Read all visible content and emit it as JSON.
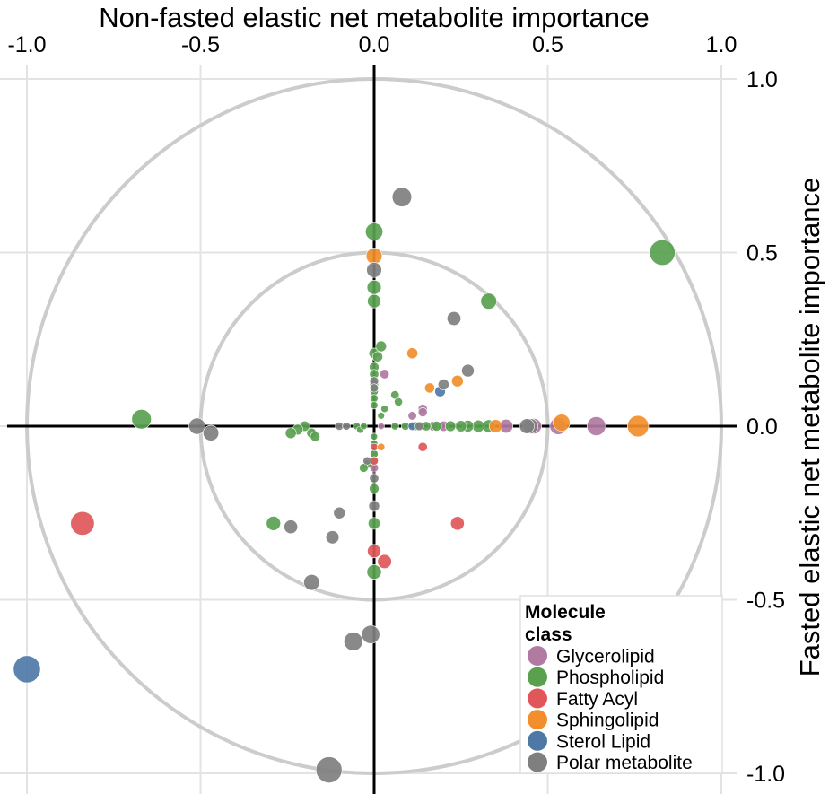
{
  "chart_data": {
    "type": "scatter",
    "title": "Non-fasted elastic net metabolite importance",
    "xlabel": "Non-fasted elastic net metabolite importance",
    "ylabel": "Fasted elastic net metabolite importance",
    "xlim": [
      -1.0,
      1.0
    ],
    "ylim": [
      -1.0,
      1.0
    ],
    "x_ticks": [
      "-1.0",
      "-0.5",
      "0.0",
      "0.5",
      "1.0"
    ],
    "y_ticks": [
      "1.0",
      "0.5",
      "0.0",
      "-0.5",
      "-1.0"
    ],
    "x_tick_values": [
      -1.0,
      -0.5,
      0.0,
      0.5,
      1.0
    ],
    "y_tick_values": [
      1.0,
      0.5,
      0.0,
      -0.5,
      -1.0
    ],
    "grid": true,
    "circles": [
      0.5,
      1.0
    ],
    "legend": {
      "title": "Molecule class",
      "title_lines": [
        "Molecule",
        "class"
      ],
      "placement": "bottom-right",
      "entries": [
        {
          "name": "Glycerolipid",
          "color": "#b07aa1"
        },
        {
          "name": "Phospholipid",
          "color": "#59a14f"
        },
        {
          "name": "Fatty Acyl",
          "color": "#e15759"
        },
        {
          "name": "Sphingolipid",
          "color": "#f28e2b"
        },
        {
          "name": "Sterol Lipid",
          "color": "#4e79a7"
        },
        {
          "name": "Polar metabolite",
          "color": "#7f7f7f"
        }
      ]
    },
    "series": [
      {
        "name": "Glycerolipid",
        "color": "#b07aa1",
        "points": [
          [
            0.64,
            0.0
          ],
          [
            0.53,
            0.0
          ],
          [
            0.46,
            0.0
          ],
          [
            0.38,
            0.0
          ],
          [
            0.2,
            0.0
          ],
          [
            0.14,
            0.05
          ],
          [
            0.14,
            0.04
          ],
          [
            0.11,
            0.03
          ],
          [
            0.03,
            0.15
          ],
          [
            0.12,
            0.0
          ],
          [
            0.17,
            0.0
          ],
          [
            0.0,
            -0.12
          ],
          [
            0.0,
            -0.08
          ],
          [
            0.02,
            0.0
          ]
        ]
      },
      {
        "name": "Phospholipid",
        "color": "#59a14f",
        "points": [
          [
            0.83,
            0.5
          ],
          [
            -0.67,
            0.02
          ],
          [
            0.0,
            0.56
          ],
          [
            0.0,
            0.4
          ],
          [
            0.0,
            0.36
          ],
          [
            0.33,
            0.36
          ],
          [
            0.0,
            0.21
          ],
          [
            0.02,
            0.23
          ],
          [
            0.01,
            0.2
          ],
          [
            0.0,
            0.17
          ],
          [
            0.0,
            0.15
          ],
          [
            0.0,
            0.12
          ],
          [
            0.0,
            0.1
          ],
          [
            0.0,
            0.08
          ],
          [
            0.0,
            0.06
          ],
          [
            0.06,
            0.09
          ],
          [
            0.07,
            0.07
          ],
          [
            0.03,
            0.05
          ],
          [
            0.02,
            0.03
          ],
          [
            0.33,
            0.0
          ],
          [
            0.3,
            0.0
          ],
          [
            0.27,
            0.0
          ],
          [
            0.25,
            0.0
          ],
          [
            0.22,
            0.0
          ],
          [
            0.18,
            0.0
          ],
          [
            0.15,
            0.0
          ],
          [
            0.12,
            0.0
          ],
          [
            0.09,
            0.0
          ],
          [
            0.06,
            0.0
          ],
          [
            -0.2,
            0.0
          ],
          [
            -0.18,
            -0.02
          ],
          [
            -0.17,
            -0.03
          ],
          [
            -0.22,
            -0.01
          ],
          [
            -0.24,
            -0.02
          ],
          [
            -0.05,
            0.0
          ],
          [
            -0.04,
            -0.01
          ],
          [
            -0.03,
            0.0
          ],
          [
            0.0,
            -0.03
          ],
          [
            0.0,
            -0.08
          ],
          [
            0.0,
            -0.1
          ],
          [
            -0.02,
            -0.11
          ],
          [
            -0.03,
            -0.12
          ],
          [
            0.0,
            -0.18
          ],
          [
            0.0,
            -0.28
          ],
          [
            0.0,
            -0.42
          ],
          [
            -0.29,
            -0.28
          ],
          [
            0.0,
            -0.1
          ],
          [
            0.0,
            -0.05
          ]
        ]
      },
      {
        "name": "Fatty Acyl",
        "color": "#e15759",
        "points": [
          [
            -0.84,
            -0.28
          ],
          [
            0.24,
            -0.28
          ],
          [
            0.0,
            -0.36
          ],
          [
            0.03,
            -0.39
          ],
          [
            0.14,
            -0.06
          ],
          [
            0.0,
            -0.06
          ],
          [
            0.0,
            -0.1
          ]
        ]
      },
      {
        "name": "Sphingolipid",
        "color": "#f28e2b",
        "points": [
          [
            0.76,
            0.0
          ],
          [
            0.54,
            0.01
          ],
          [
            0.0,
            0.49
          ],
          [
            0.11,
            0.21
          ],
          [
            0.24,
            0.13
          ],
          [
            0.16,
            0.11
          ],
          [
            0.35,
            0.0
          ],
          [
            0.02,
            -0.06
          ]
        ]
      },
      {
        "name": "Sterol Lipid",
        "color": "#4e79a7",
        "points": [
          [
            -1.0,
            -0.7
          ],
          [
            0.19,
            0.1
          ],
          [
            0.11,
            0.0
          ]
        ]
      },
      {
        "name": "Polar metabolite",
        "color": "#7f7f7f",
        "points": [
          [
            0.08,
            0.66
          ],
          [
            0.23,
            0.31
          ],
          [
            0.27,
            0.16
          ],
          [
            0.2,
            0.12
          ],
          [
            0.0,
            0.45
          ],
          [
            0.45,
            0.0
          ],
          [
            0.44,
            0.0
          ],
          [
            -0.51,
            0.0
          ],
          [
            -0.47,
            -0.02
          ],
          [
            -0.24,
            -0.29
          ],
          [
            -0.1,
            -0.25
          ],
          [
            -0.12,
            -0.32
          ],
          [
            -0.18,
            -0.45
          ],
          [
            0.0,
            -0.23
          ],
          [
            -0.06,
            -0.62
          ],
          [
            -0.01,
            -0.6
          ],
          [
            -0.13,
            -0.99
          ],
          [
            0.0,
            0.13
          ],
          [
            0.0,
            0.11
          ],
          [
            0.0,
            -0.15
          ],
          [
            -0.02,
            -0.1
          ],
          [
            -0.1,
            0.0
          ],
          [
            -0.08,
            0.0
          ],
          [
            0.13,
            0.0
          ]
        ]
      }
    ]
  }
}
